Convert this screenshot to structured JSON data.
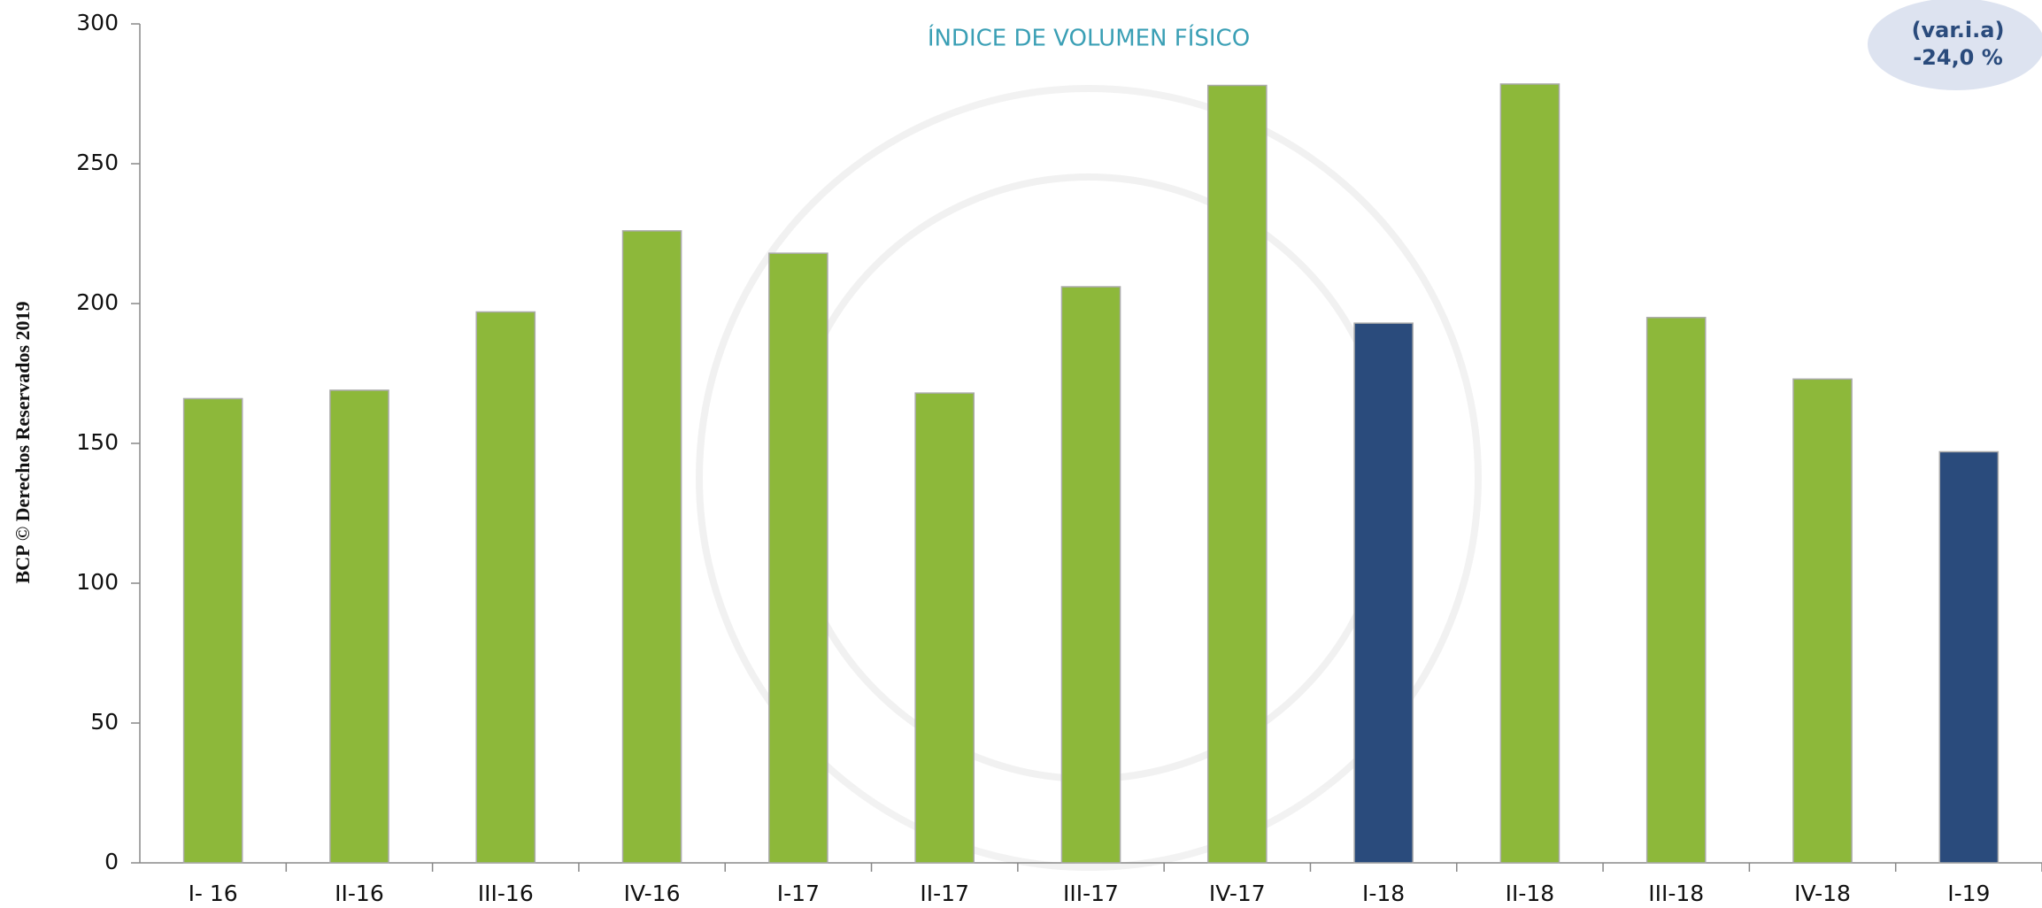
{
  "chart_data": {
    "type": "bar",
    "title": "ÍNDICE DE VOLUMEN FÍSICO",
    "annotation": [
      "(var.i.a)",
      "-24,0 %"
    ],
    "side_note": "BCP © Derechos Reservados 2019",
    "categories": [
      "I- 16",
      "II-16",
      "III-16",
      "IV-16",
      "I-17",
      "II-17",
      "III-17",
      "IV-17",
      "I-18",
      "II-18",
      "III-18",
      "IV-18",
      "I-19"
    ],
    "values": [
      166,
      169,
      197,
      226,
      218,
      168,
      206,
      278,
      193,
      278.5,
      195,
      173,
      147
    ],
    "colors": [
      "#8db83a",
      "#8db83a",
      "#8db83a",
      "#8db83a",
      "#8db83a",
      "#8db83a",
      "#8db83a",
      "#8db83a",
      "#2a4b7c",
      "#8db83a",
      "#8db83a",
      "#8db83a",
      "#2a4b7c"
    ],
    "ylim": [
      0,
      300
    ],
    "yticks": [
      0,
      50,
      100,
      150,
      200,
      250,
      300
    ],
    "grid": false
  }
}
